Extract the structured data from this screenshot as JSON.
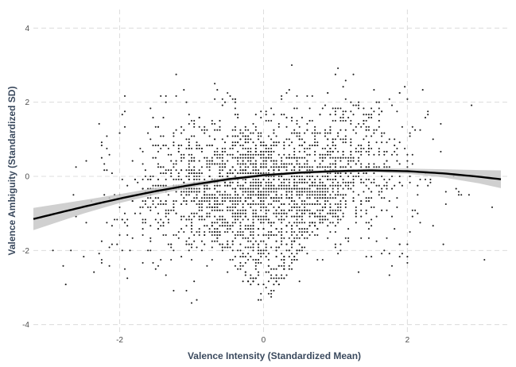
{
  "chart_data": {
    "type": "scatter",
    "title": "",
    "xlabel": "Valence Intensity (Standardized Mean)",
    "ylabel": "Valence Ambiguity (Standardized SD)",
    "xlim": [
      -3.2,
      3.4
    ],
    "ylim": [
      -4.2,
      4.5
    ],
    "x_ticks": [
      -2,
      0,
      2
    ],
    "y_ticks": [
      -4,
      -2,
      0,
      2,
      4
    ],
    "x_tick_labels": [
      "-2",
      "0",
      "2"
    ],
    "y_tick_labels": [
      "-4",
      "-2",
      "0",
      "2",
      "4"
    ],
    "grid": true,
    "point_color": "#222222",
    "fit_line_color": "#000000",
    "ci_band_color": "#c8c8c8",
    "fit_curve": {
      "x": [
        -3.2,
        -2.5,
        -2.0,
        -1.5,
        -1.0,
        -0.5,
        0.0,
        0.5,
        1.0,
        1.5,
        2.0,
        2.5,
        3.0,
        3.3
      ],
      "y": [
        -1.15,
        -0.82,
        -0.6,
        -0.4,
        -0.23,
        -0.08,
        0.03,
        0.1,
        0.14,
        0.16,
        0.14,
        0.08,
        -0.01,
        -0.08
      ],
      "ci_low": [
        -1.45,
        -1.0,
        -0.72,
        -0.49,
        -0.3,
        -0.13,
        -0.01,
        0.06,
        0.1,
        0.11,
        0.07,
        -0.03,
        -0.19,
        -0.32
      ],
      "ci_high": [
        -0.85,
        -0.64,
        -0.48,
        -0.31,
        -0.16,
        -0.03,
        0.07,
        0.14,
        0.18,
        0.21,
        0.21,
        0.19,
        0.17,
        0.16
      ]
    },
    "point_cloud": {
      "n_points": 2600,
      "description_only": false
    }
  }
}
